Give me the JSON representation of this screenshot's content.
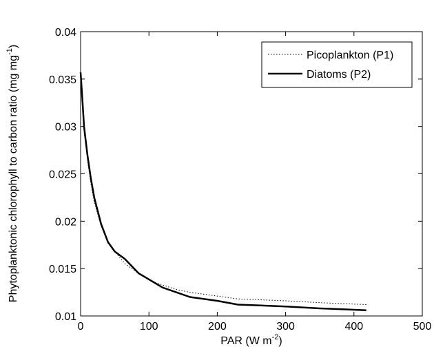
{
  "chart_data": {
    "type": "line",
    "xlabel": "PAR (W m",
    "xlabel_sup": "-2",
    "xlabel_end": ")",
    "ylabel": "Phytoplanktonic chlorophyll to carbon ratio (mg mg",
    "ylabel_sup": "-1",
    "ylabel_end": ")",
    "xlim": [
      0,
      500
    ],
    "ylim": [
      0.01,
      0.04
    ],
    "x_ticks": [
      0,
      100,
      200,
      300,
      400,
      500
    ],
    "y_ticks": [
      0.01,
      0.015,
      0.02,
      0.025,
      0.03,
      0.035,
      0.04
    ],
    "x_tick_labels": [
      "0",
      "100",
      "200",
      "300",
      "400",
      "500"
    ],
    "y_tick_labels": [
      "0.01",
      "0.015",
      "0.02",
      "0.025",
      "0.03",
      "0.035",
      "0.04"
    ],
    "legend_position": "top-right",
    "grid": false,
    "series": [
      {
        "name": "Picoplankton (P1)",
        "style": "dotted",
        "color": "#000000",
        "x": [
          0,
          2,
          5,
          10,
          15,
          20,
          30,
          40,
          50,
          65,
          85,
          110,
          140,
          160,
          200,
          230,
          300,
          350,
          418
        ],
        "y": [
          0.0355,
          0.0335,
          0.0295,
          0.0265,
          0.024,
          0.022,
          0.0195,
          0.0178,
          0.0168,
          0.0155,
          0.0145,
          0.0135,
          0.0128,
          0.0125,
          0.0121,
          0.0118,
          0.0116,
          0.0114,
          0.0112
        ]
      },
      {
        "name": "Diatoms (P2)",
        "style": "solid",
        "color": "#000000",
        "x": [
          0,
          2,
          5,
          10,
          15,
          20,
          30,
          40,
          50,
          65,
          85,
          120,
          160,
          200,
          230,
          300,
          350,
          418
        ],
        "y": [
          0.0357,
          0.0335,
          0.03,
          0.027,
          0.0245,
          0.0225,
          0.0197,
          0.0178,
          0.0168,
          0.016,
          0.0145,
          0.013,
          0.012,
          0.0116,
          0.0112,
          0.011,
          0.0108,
          0.0106
        ]
      }
    ]
  }
}
